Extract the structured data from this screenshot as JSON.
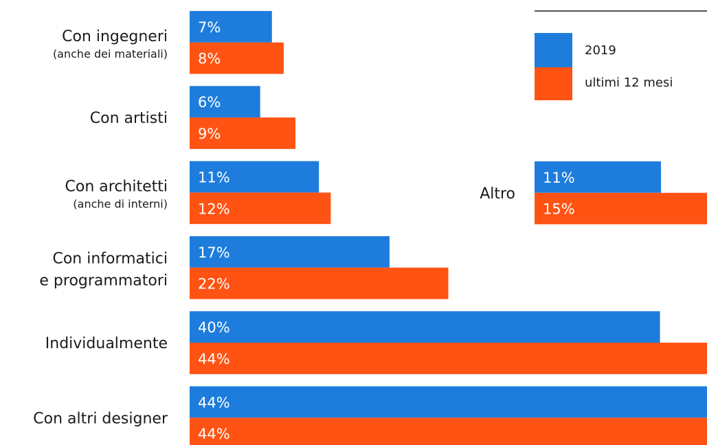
{
  "chart_data": [
    {
      "type": "bar",
      "orientation": "horizontal",
      "categories": [
        [
          "Con ingegneri",
          "(anche dei materiali)"
        ],
        [
          "Con artisti"
        ],
        [
          "Con architetti",
          "(anche di interni)"
        ],
        [
          "Con informatici",
          "e programmatori"
        ],
        [
          "Individualmente"
        ],
        [
          "Con altri designer"
        ]
      ],
      "series": [
        {
          "name": "2019",
          "color": "#1e7ddc",
          "values": [
            7,
            6,
            11,
            17,
            40,
            44
          ],
          "labels": [
            "7%",
            "6%",
            "11%",
            "17%",
            "40%",
            "44%"
          ]
        },
        {
          "name": "ultimi 12 mesi",
          "color": "#ff5314",
          "values": [
            8,
            9,
            12,
            22,
            44,
            44
          ],
          "labels": [
            "8%",
            "9%",
            "12%",
            "22%",
            "44%",
            "44%"
          ]
        }
      ],
      "xlim": [
        0,
        44
      ],
      "legend_position": "top-right"
    },
    {
      "type": "bar",
      "orientation": "horizontal",
      "categories": [
        [
          "Altro"
        ]
      ],
      "series": [
        {
          "name": "2019",
          "color": "#1e7ddc",
          "values": [
            11
          ],
          "labels": [
            "11%"
          ]
        },
        {
          "name": "ultimi 12 mesi",
          "color": "#ff5314",
          "values": [
            15
          ],
          "labels": [
            "15%"
          ]
        }
      ],
      "xlim": [
        0,
        15
      ]
    }
  ]
}
